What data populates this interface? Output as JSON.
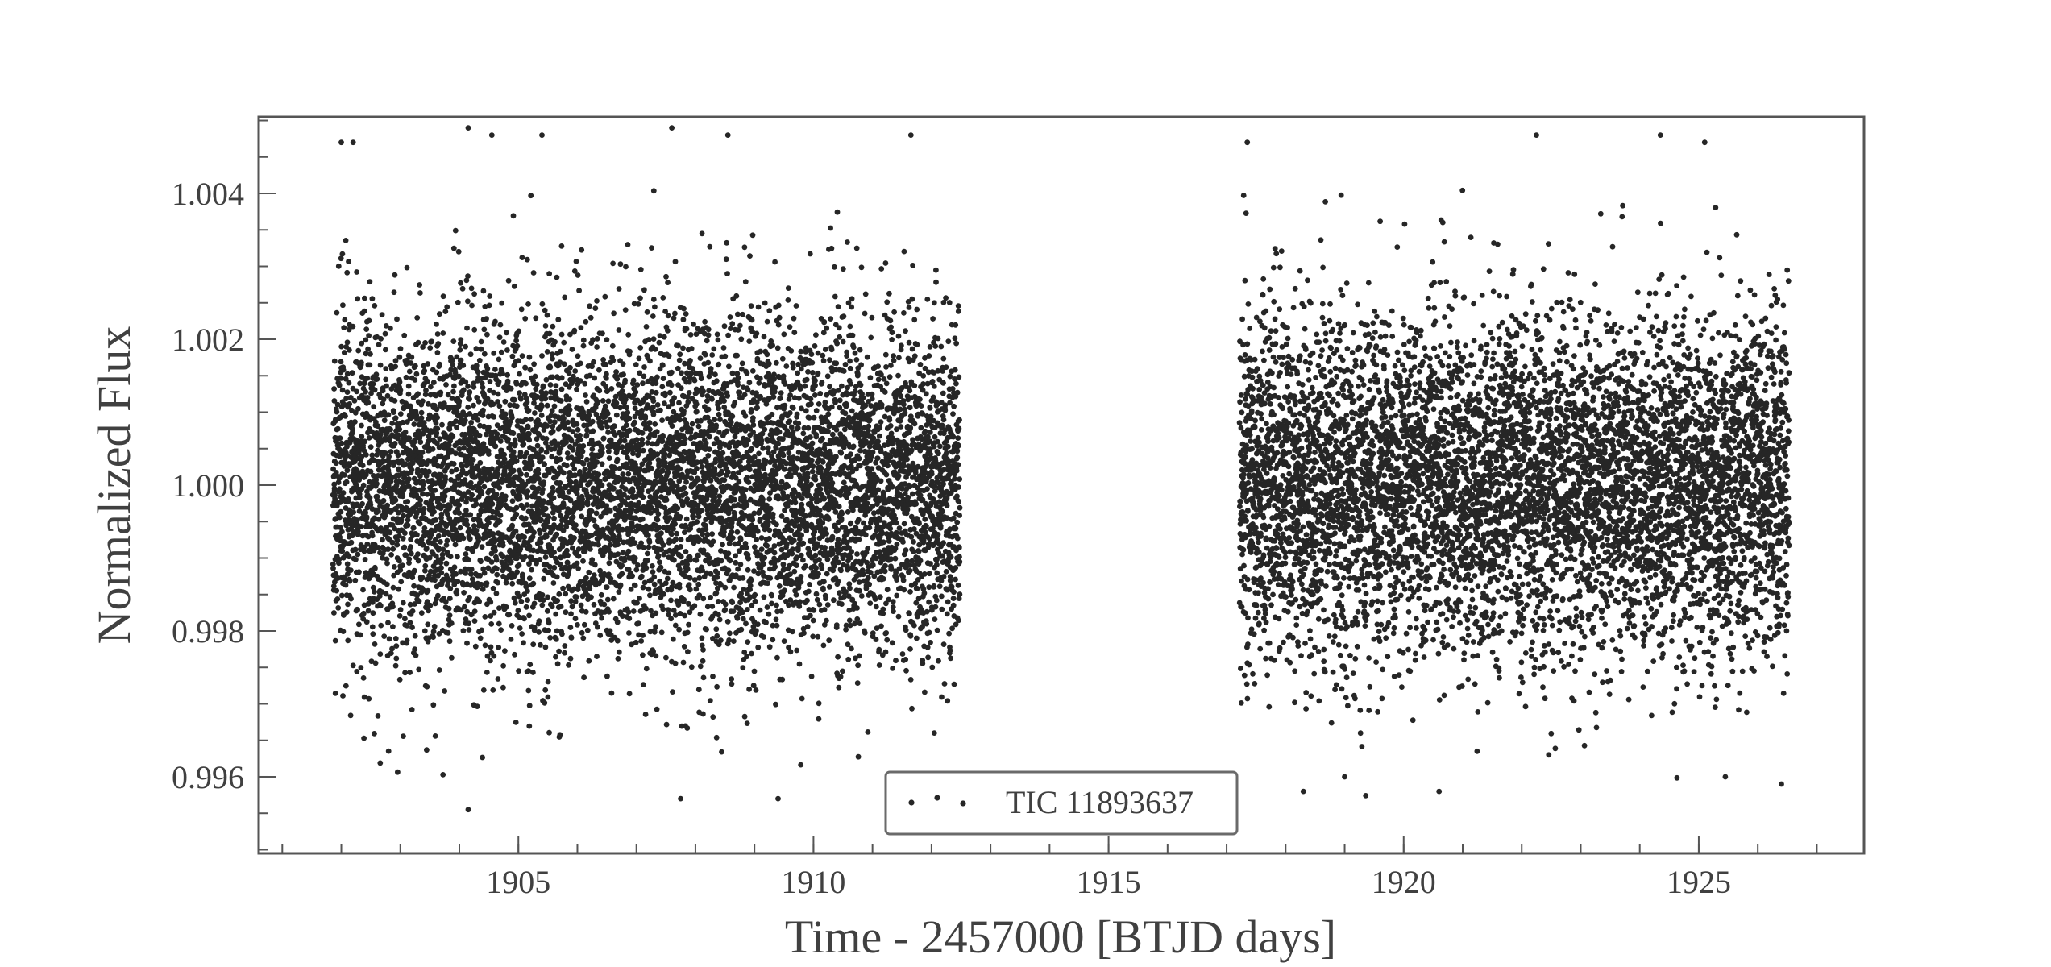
{
  "chart_data": {
    "type": "scatter",
    "xlabel": "Time - 2457000 [BTJD days]",
    "ylabel": "Normalized Flux",
    "xlim": [
      1900.6,
      1927.8
    ],
    "ylim": [
      0.99495,
      1.00505
    ],
    "x_ticks": [
      1905,
      1910,
      1915,
      1920,
      1925
    ],
    "x_tick_labels": [
      "1905",
      "1910",
      "1915",
      "1920",
      "1925"
    ],
    "x_minor_step": 1,
    "y_ticks": [
      0.996,
      0.998,
      1.0,
      1.002,
      1.004
    ],
    "y_tick_labels": [
      "0.996",
      "0.998",
      "1.000",
      "1.002",
      "1.004"
    ],
    "y_minor_step": 0.0005,
    "grid": false,
    "legend": {
      "position": "lower-center",
      "entries": [
        "TIC 11893637"
      ]
    },
    "marker_color": "#262626",
    "axis_color": "#555555",
    "series": [
      {
        "name": "TIC 11893637",
        "segments": [
          {
            "x_start": 1901.86,
            "x_end": 1912.48,
            "samples": 7600
          },
          {
            "x_start": 1917.22,
            "x_end": 1926.53,
            "samples": 6700
          }
        ],
        "mean_flux": 1.0,
        "flux_scatter": 0.00115,
        "outliers": [
          {
            "x": 1902.0,
            "y": 1.0047
          },
          {
            "x": 1902.2,
            "y": 1.0047
          },
          {
            "x": 1904.15,
            "y": 1.0049
          },
          {
            "x": 1904.55,
            "y": 1.0048
          },
          {
            "x": 1905.4,
            "y": 1.0048
          },
          {
            "x": 1907.6,
            "y": 1.0049
          },
          {
            "x": 1908.55,
            "y": 1.0048
          },
          {
            "x": 1911.65,
            "y": 1.0048
          },
          {
            "x": 1917.35,
            "y": 1.0047
          },
          {
            "x": 1922.25,
            "y": 1.0048
          },
          {
            "x": 1924.35,
            "y": 1.0048
          },
          {
            "x": 1925.1,
            "y": 1.0047
          },
          {
            "x": 1904.15,
            "y": 0.99555
          },
          {
            "x": 1907.75,
            "y": 0.9957
          },
          {
            "x": 1909.4,
            "y": 0.9957
          },
          {
            "x": 1918.3,
            "y": 0.9958
          },
          {
            "x": 1919.0,
            "y": 0.996
          },
          {
            "x": 1920.6,
            "y": 0.9958
          },
          {
            "x": 1925.45,
            "y": 0.996
          },
          {
            "x": 1926.4,
            "y": 0.9959
          }
        ]
      }
    ]
  }
}
